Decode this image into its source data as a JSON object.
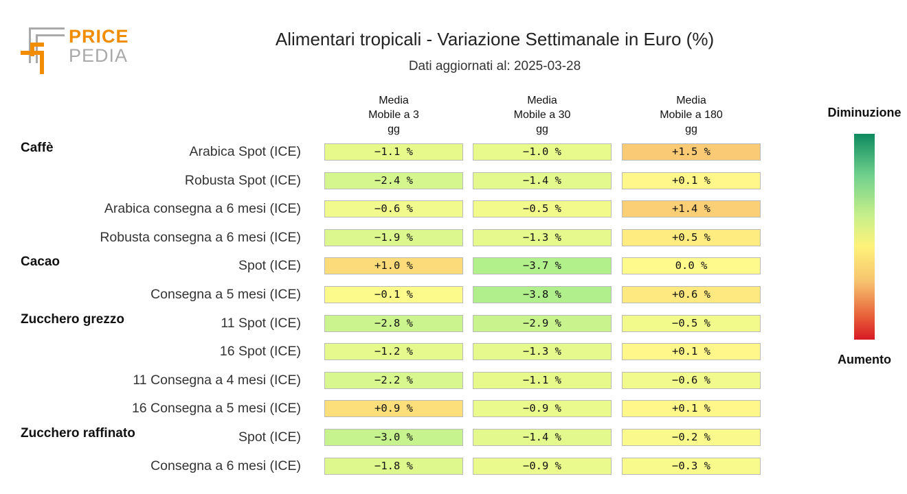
{
  "logo": {
    "word1": "PRICE",
    "word2": "PEDIA"
  },
  "header": {
    "title": "Alimentari tropicali - Variazione Settimanale in Euro (%)",
    "subtitle": "Dati aggiornati al: 2025-03-28"
  },
  "legend": {
    "top": "Diminuzione",
    "bottom": "Aumento"
  },
  "chart_data": {
    "type": "table",
    "title": "Alimentari tropicali - Variazione Settimanale in Euro (%)",
    "subtitle": "Dati aggiornati al: 2025-03-28",
    "columns": [
      [
        "Media",
        "Mobile a 3",
        "gg"
      ],
      [
        "Media",
        "Mobile a 30",
        "gg"
      ],
      [
        "Media",
        "Mobile a 180",
        "gg"
      ]
    ],
    "groups": [
      {
        "name": "Caffè",
        "rows": [
          {
            "label": "Arabica Spot (ICE)",
            "values": [
              "-1.1 %",
              "-1.0 %",
              "+1.5 %"
            ]
          },
          {
            "label": "Robusta Spot (ICE)",
            "values": [
              "-2.4 %",
              "-1.4 %",
              "+0.1 %"
            ]
          },
          {
            "label": "Arabica consegna a 6 mesi (ICE)",
            "values": [
              "-0.6 %",
              "-0.5 %",
              "+1.4 %"
            ]
          },
          {
            "label": "Robusta consegna a 6 mesi (ICE)",
            "values": [
              "-1.9 %",
              "-1.3 %",
              "+0.5 %"
            ]
          }
        ]
      },
      {
        "name": "Cacao",
        "rows": [
          {
            "label": "Spot (ICE)",
            "values": [
              "+1.0 %",
              "-3.7 %",
              "0.0 %"
            ]
          },
          {
            "label": "Consegna a 5 mesi (ICE)",
            "values": [
              "-0.1 %",
              "-3.8 %",
              "+0.6 %"
            ]
          }
        ]
      },
      {
        "name": "Zucchero grezzo",
        "rows": [
          {
            "label": "11 Spot (ICE)",
            "values": [
              "-2.8 %",
              "-2.9 %",
              "-0.5 %"
            ]
          },
          {
            "label": "16 Spot (ICE)",
            "values": [
              "-1.2 %",
              "-1.3 %",
              "+0.1 %"
            ]
          },
          {
            "label": "11 Consegna a 4 mesi (ICE)",
            "values": [
              "-2.2 %",
              "-1.1 %",
              "-0.6 %"
            ]
          },
          {
            "label": "16 Consegna a 5 mesi (ICE)",
            "values": [
              "+0.9 %",
              "-0.9 %",
              "+0.1 %"
            ]
          }
        ]
      },
      {
        "name": "Zucchero raffinato",
        "rows": [
          {
            "label": "Spot (ICE)",
            "values": [
              "-3.0 %",
              "-1.4 %",
              "-0.2 %"
            ]
          },
          {
            "label": "Consegna a 6 mesi (ICE)",
            "values": [
              "-1.8 %",
              "-0.9 %",
              "-0.3 %"
            ]
          }
        ]
      }
    ]
  }
}
